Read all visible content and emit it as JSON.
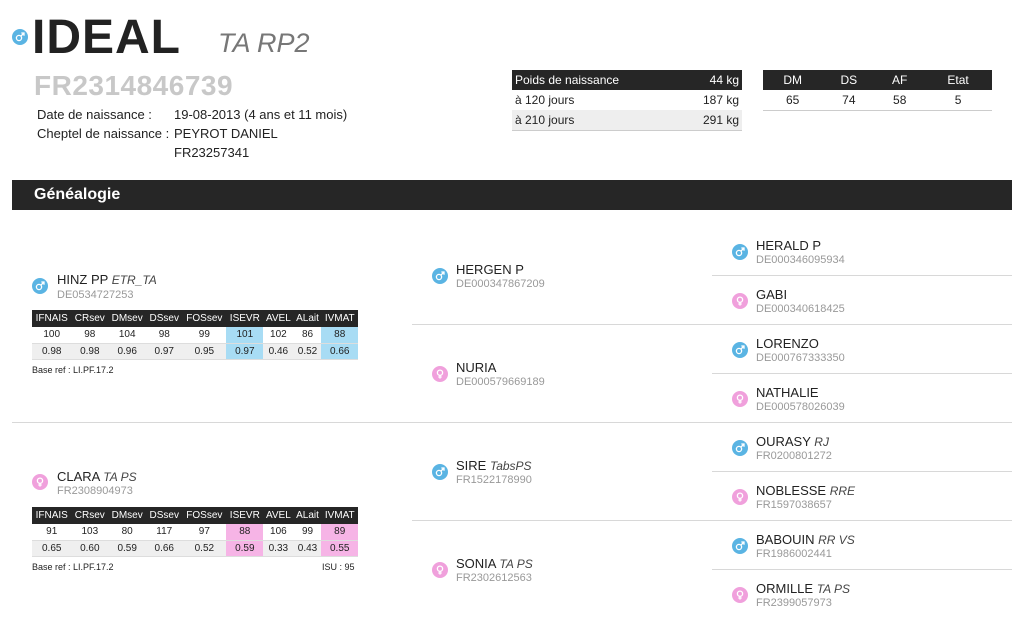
{
  "animal": {
    "name": "IDEAL",
    "race": "TA RP2",
    "id": "FR2314846739",
    "sex_icon": "male-icon",
    "birth_label": "Date de naissance :",
    "birth_value": "19-08-2013 (4 ans et 11 mois)",
    "herd_label": "Cheptel de naissance :",
    "herd_name": "PEYROT DANIEL",
    "herd_id": "FR23257341"
  },
  "weights": {
    "rows": [
      {
        "label": "Poids de naissance",
        "value": "44 kg"
      },
      {
        "label": "à 120 jours",
        "value": "187 kg"
      },
      {
        "label": "à 210 jours",
        "value": "291 kg"
      }
    ]
  },
  "indices": {
    "headers": [
      "DM",
      "DS",
      "AF",
      "Etat"
    ],
    "values": [
      "65",
      "74",
      "58",
      "5"
    ]
  },
  "genealogy": {
    "title": "Généalogie",
    "index_headers": [
      "IFNAIS",
      "CRsev",
      "DMsev",
      "DSsev",
      "FOSsev",
      "ISEVR",
      "AVEL",
      "ALait",
      "IVMAT"
    ],
    "sire": {
      "name": "HINZ PP",
      "race": "ETR_TA",
      "id": "DE0534727253",
      "row1": [
        "100",
        "98",
        "104",
        "98",
        "99",
        "101",
        "102",
        "86",
        "88"
      ],
      "row2": [
        "0.98",
        "0.98",
        "0.96",
        "0.97",
        "0.95",
        "0.97",
        "0.46",
        "0.52",
        "0.66"
      ],
      "base_ref": "Base ref : LI.PF.17.2"
    },
    "dam": {
      "name": "CLARA",
      "race": "TA PS",
      "id": "FR2308904973",
      "row1": [
        "91",
        "103",
        "80",
        "117",
        "97",
        "88",
        "106",
        "99",
        "89"
      ],
      "row2": [
        "0.65",
        "0.60",
        "0.59",
        "0.66",
        "0.52",
        "0.59",
        "0.33",
        "0.43",
        "0.55"
      ],
      "base_ref": "Base ref : LI.PF.17.2",
      "isu": "ISU : 95"
    },
    "grandparents": [
      {
        "name": "HERGEN P",
        "race": "",
        "id": "DE000347867209"
      },
      {
        "name": "NURIA",
        "race": "",
        "id": "DE000579669189"
      },
      {
        "name": "SIRE",
        "race": "TabsPS",
        "id": "FR1522178990"
      },
      {
        "name": "SONIA",
        "race": "TA PS",
        "id": "FR2302612563"
      }
    ],
    "great_grandparents": [
      {
        "name": "HERALD P",
        "race": "",
        "id": "DE000346095934"
      },
      {
        "name": "GABI",
        "race": "",
        "id": "DE000340618425"
      },
      {
        "name": "LORENZO",
        "race": "",
        "id": "DE000767333350"
      },
      {
        "name": "NATHALIE",
        "race": "",
        "id": "DE000578026039"
      },
      {
        "name": "OURASY",
        "race": "RJ",
        "id": "FR0200801272"
      },
      {
        "name": "NOBLESSE",
        "race": "RRE",
        "id": "FR1597038657"
      },
      {
        "name": "BABOUIN",
        "race": "RR VS",
        "id": "FR1986002441"
      },
      {
        "name": "ORMILLE",
        "race": "TA PS",
        "id": "FR2399057973"
      }
    ]
  },
  "colors": {
    "male": "#5ab4e3",
    "female": "#f0a0dc",
    "header_bg": "#262626",
    "highlight_male": "#a8dcf4",
    "highlight_female": "#f6b4e6"
  }
}
